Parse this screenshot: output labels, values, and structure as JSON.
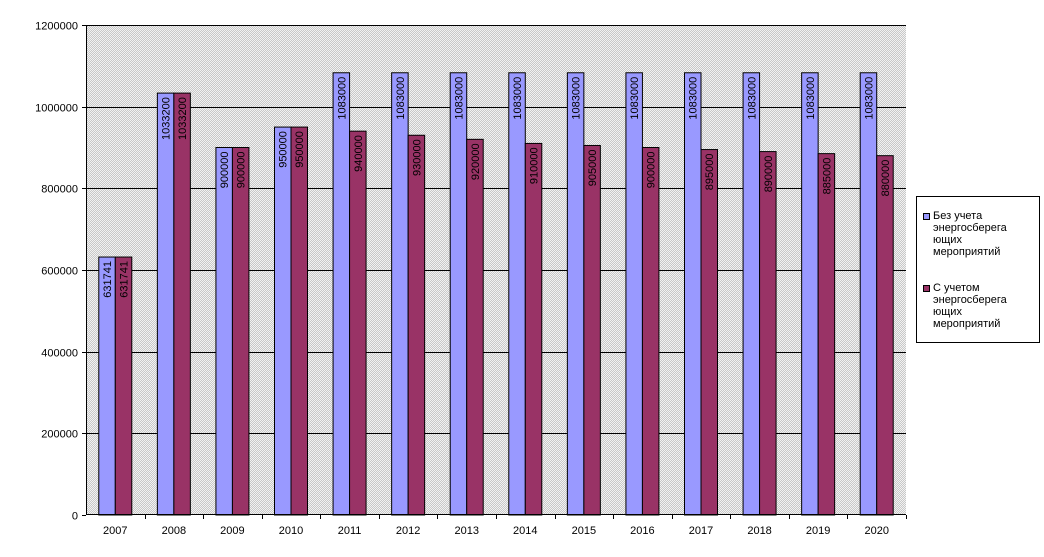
{
  "chart_data": {
    "type": "bar",
    "categories": [
      "2007",
      "2008",
      "2009",
      "2010",
      "2011",
      "2012",
      "2013",
      "2014",
      "2015",
      "2016",
      "2017",
      "2018",
      "2019",
      "2020"
    ],
    "series": [
      {
        "name": "Без учета энергосберега ющих мероприятий",
        "legend_lines": [
          "Без учета",
          "энергосберега",
          "ющих",
          "мероприятий"
        ],
        "color": "#9999ff",
        "values": [
          631741,
          1033200,
          900000,
          950000,
          1083000,
          1083000,
          1083000,
          1083000,
          1083000,
          1083000,
          1083000,
          1083000,
          1083000,
          1083000
        ]
      },
      {
        "name": "С учетом энергосберега ющих мероприятий",
        "legend_lines": [
          "С учетом",
          "энергосберега",
          "ющих",
          "мероприятий"
        ],
        "color": "#993366",
        "values": [
          631741,
          1033200,
          900000,
          950000,
          940000,
          930000,
          920000,
          910000,
          905000,
          900000,
          895000,
          890000,
          885000,
          880000
        ]
      }
    ],
    "y_ticks": [
      0,
      200000,
      400000,
      600000,
      800000,
      1000000,
      1200000
    ],
    "ylim": [
      0,
      1200000
    ],
    "grid": true,
    "legend_position": "right",
    "title": "",
    "xlabel": "",
    "ylabel": "",
    "plot_background": "#c0c0c0"
  }
}
